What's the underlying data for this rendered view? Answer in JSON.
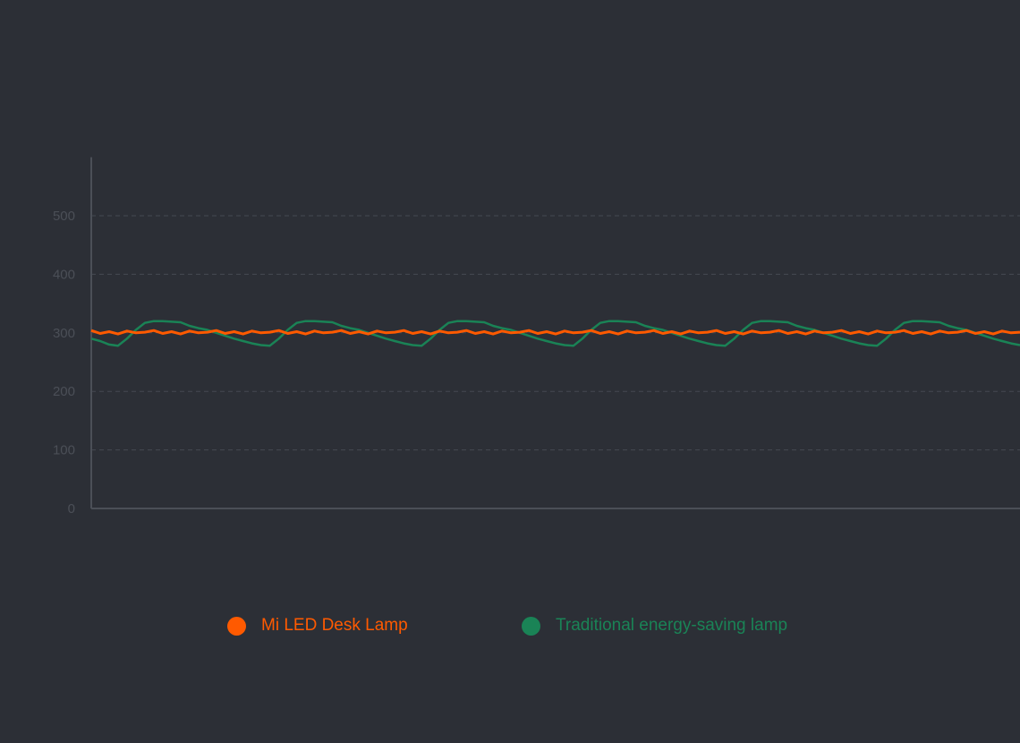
{
  "chart_data": {
    "type": "line",
    "title": "",
    "xlabel": "",
    "ylabel": "",
    "ylim": [
      0,
      600
    ],
    "yticks": [
      "0",
      "100",
      "200",
      "300",
      "400",
      "500"
    ],
    "grid": true,
    "legend_placement": "bottom",
    "series": [
      {
        "name": "Mi LED Desk Lamp",
        "color": "#ff5a00",
        "values": [
          304,
          299,
          302,
          298,
          303,
          300,
          301,
          304,
          299,
          302,
          298,
          303,
          300,
          301,
          304,
          299,
          302,
          298,
          303,
          300,
          301,
          304,
          299,
          302,
          298,
          303,
          300,
          301,
          304,
          299,
          302,
          298,
          303,
          300,
          301,
          304,
          299,
          302,
          298,
          303,
          300,
          301,
          304,
          299,
          302,
          298,
          303,
          300,
          301,
          304,
          299,
          302,
          298,
          303,
          300,
          301,
          304,
          299,
          302,
          298,
          303,
          300,
          301,
          304,
          299,
          302,
          298,
          303,
          300,
          301,
          304,
          299,
          302,
          298,
          303,
          300,
          301,
          304,
          299,
          302,
          298,
          303,
          300,
          301,
          304,
          299,
          302,
          298,
          303,
          300,
          301,
          304,
          299,
          302,
          298,
          303,
          300,
          301,
          304,
          299,
          302,
          298,
          303,
          300,
          301
        ]
      },
      {
        "name": "Traditional energy-saving lamp",
        "color": "#1a8356",
        "values": [
          290,
          286,
          280,
          278,
          290,
          305,
          317,
          320,
          320,
          319,
          318,
          312,
          308,
          305,
          300,
          295,
          290,
          286,
          282,
          279,
          278,
          290,
          305,
          317,
          320,
          320,
          319,
          318,
          312,
          308,
          305,
          300,
          295,
          290,
          286,
          282,
          279,
          278,
          290,
          305,
          317,
          320,
          320,
          319,
          318,
          312,
          308,
          305,
          300,
          295,
          290,
          286,
          282,
          279,
          278,
          290,
          305,
          317,
          320,
          320,
          319,
          318,
          312,
          308,
          305,
          300,
          295,
          290,
          286,
          282,
          279,
          278,
          290,
          305,
          317,
          320,
          320,
          319,
          318,
          312,
          308,
          305,
          300,
          295,
          290,
          286,
          282,
          279,
          278,
          290,
          305,
          317,
          320,
          320,
          319,
          318,
          312,
          308,
          305,
          300,
          295,
          290,
          286,
          282,
          279
        ]
      }
    ]
  },
  "colors": {
    "background": "#2c2f36",
    "grid": "#454952",
    "axis": "#4b4f57"
  }
}
